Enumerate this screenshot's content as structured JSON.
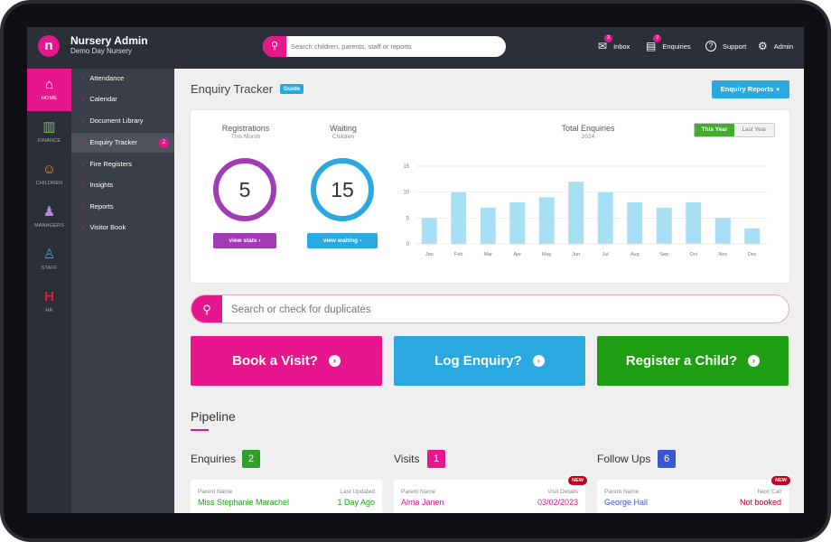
{
  "header": {
    "logo_glyph": "n",
    "title": "Nursery Admin",
    "subtitle": "Demo Day Nursery",
    "search_placeholder": "Search children, parents, staff or reports",
    "nav": [
      {
        "label": "Inbox",
        "icon": "mail-icon",
        "badge": "3"
      },
      {
        "label": "Enquiries",
        "icon": "book-icon",
        "badge": "2"
      },
      {
        "label": "Support",
        "icon": "question-icon"
      },
      {
        "label": "Admin",
        "icon": "gear-icon"
      }
    ]
  },
  "rail": [
    {
      "label": "HOME",
      "icon": "home-icon",
      "glyph": "⌂"
    },
    {
      "label": "FINANCE",
      "icon": "finance-chart-icon",
      "glyph": "▥"
    },
    {
      "label": "CHILDREN",
      "icon": "children-icon",
      "glyph": "☺"
    },
    {
      "label": "MANAGERS",
      "icon": "manager-icon",
      "glyph": "♟"
    },
    {
      "label": "STAFF",
      "icon": "staff-icon",
      "glyph": "♙"
    },
    {
      "label": "HR",
      "icon": "hr-icon",
      "glyph": "H"
    }
  ],
  "submenu": [
    {
      "label": "Attendance"
    },
    {
      "label": "Calendar"
    },
    {
      "label": "Document Library"
    },
    {
      "label": "Enquiry Tracker",
      "count": "2"
    },
    {
      "label": "Fire Registers"
    },
    {
      "label": "Insights"
    },
    {
      "label": "Reports"
    },
    {
      "label": "Visitor Book"
    }
  ],
  "page": {
    "title": "Enquiry Tracker",
    "guide": "Guide",
    "reports_button": "Enquiry Reports"
  },
  "stats": {
    "registrations": {
      "title": "Registrations",
      "subtitle": "This Month",
      "value": "5",
      "button": "view stats",
      "color": "#a23cb4"
    },
    "waiting": {
      "title": "Waiting",
      "subtitle": "Children",
      "value": "15",
      "button": "view waiting",
      "color": "#2aa8e0"
    }
  },
  "chart_data": {
    "type": "bar",
    "title": "Total Enquiries",
    "subtitle": "2024",
    "categories": [
      "Jan",
      "Feb",
      "Mar",
      "Apr",
      "May",
      "Jun",
      "Jul",
      "Aug",
      "Sep",
      "Oct",
      "Nov",
      "Dec"
    ],
    "values": [
      5,
      10,
      7,
      8,
      9,
      12,
      10,
      8,
      7,
      8,
      5,
      3
    ],
    "ylim": [
      0,
      15
    ],
    "yticks": [
      0,
      5,
      10,
      15
    ],
    "grid": true,
    "bar_color": "#a8dff4",
    "toggle": {
      "active": "This Year",
      "inactive": "Last Year"
    }
  },
  "duplicate_search_placeholder": "Search or check for duplicates",
  "actions": [
    {
      "label": "Book a Visit?",
      "color": "#e6178d"
    },
    {
      "label": "Log Enquiry?",
      "color": "#2aa8e0"
    },
    {
      "label": "Register a Child?",
      "color": "#1f9e14"
    }
  ],
  "pipeline": {
    "title": "Pipeline",
    "columns": [
      {
        "title": "Enquiries",
        "count": "2",
        "count_color": "#2ea02a",
        "card": {
          "left_label": "Parent Name",
          "right_label": "Last Updated",
          "name": "Miss Stephanie Marachel",
          "value": "1 Day Ago",
          "name_color": "#1f9e14",
          "value_color": "#1f9e14"
        }
      },
      {
        "title": "Visits",
        "count": "1",
        "count_color": "#e6178d",
        "card": {
          "left_label": "Parent Name",
          "right_label": "Visit Details",
          "name": "Alma Janen",
          "value": "03/02/2023",
          "name_color": "#e6178d",
          "value_color": "#e6178d",
          "new": "NEW"
        }
      },
      {
        "title": "Follow Ups",
        "count": "6",
        "count_color": "#3a56d4",
        "card": {
          "left_label": "Parent Name",
          "right_label": "Next Call",
          "name": "George Hall",
          "value": "Not booked",
          "name_color": "#3a56d4",
          "value_color": "#c1001b",
          "new": "NEW"
        }
      }
    ]
  }
}
